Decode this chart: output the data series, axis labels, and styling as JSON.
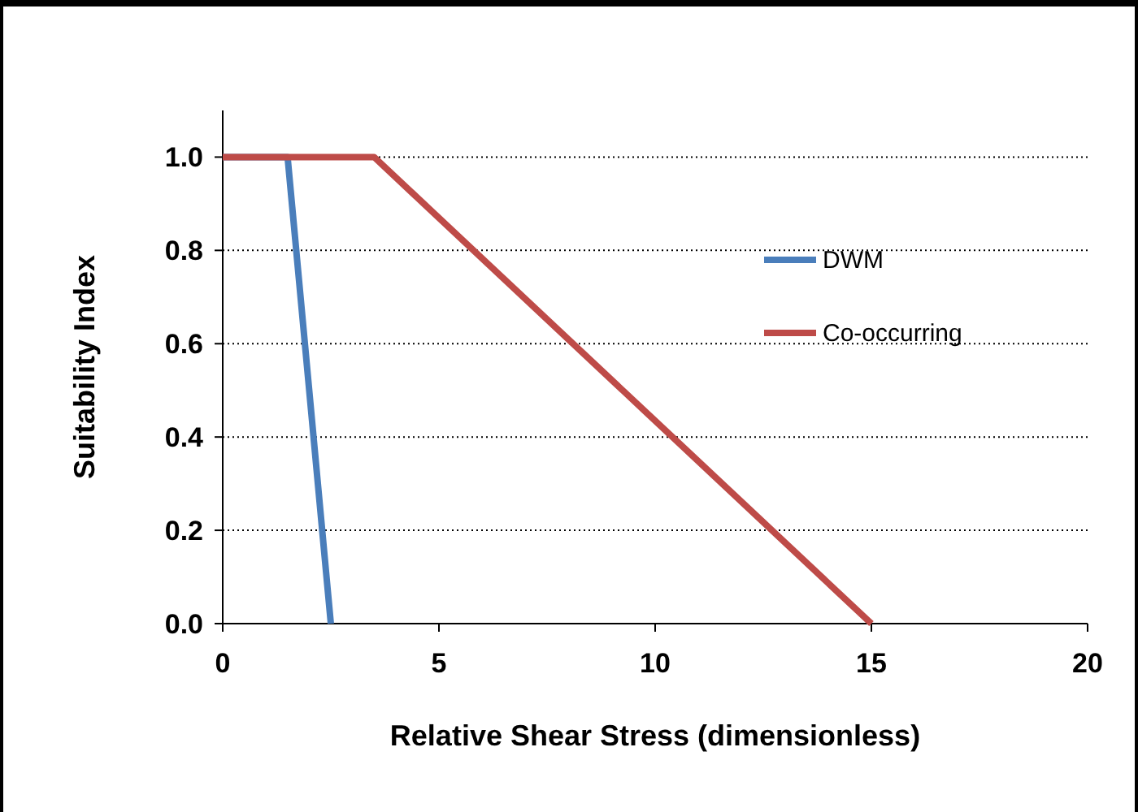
{
  "chart_data": {
    "type": "line",
    "xlabel": "Relative Shear Stress (dimensionless)",
    "ylabel": "Suitability Index",
    "xlim": [
      0,
      20
    ],
    "xticks": [
      0,
      5,
      10,
      15,
      20
    ],
    "ylim": [
      0,
      1.1
    ],
    "yticks": [
      {
        "value": 0,
        "label": "0.0"
      },
      {
        "value": 0.2,
        "label": "0.2"
      },
      {
        "value": 0.4,
        "label": "0.4"
      },
      {
        "value": 0.6,
        "label": "0.6"
      },
      {
        "value": 0.8,
        "label": "0.8"
      },
      {
        "value": 1,
        "label": "1.0"
      }
    ],
    "grid": "y",
    "legend": "right",
    "marker": "none",
    "line_style": "solid",
    "series": [
      {
        "name": "DWM",
        "color": "#4a7ebb",
        "x": [
          0,
          1.5,
          2.5
        ],
        "values": [
          1,
          1,
          0
        ]
      },
      {
        "name": "Co-occurring",
        "color": "#be4b48",
        "x": [
          0,
          3.5,
          15
        ],
        "values": [
          1,
          1,
          0
        ]
      }
    ]
  }
}
